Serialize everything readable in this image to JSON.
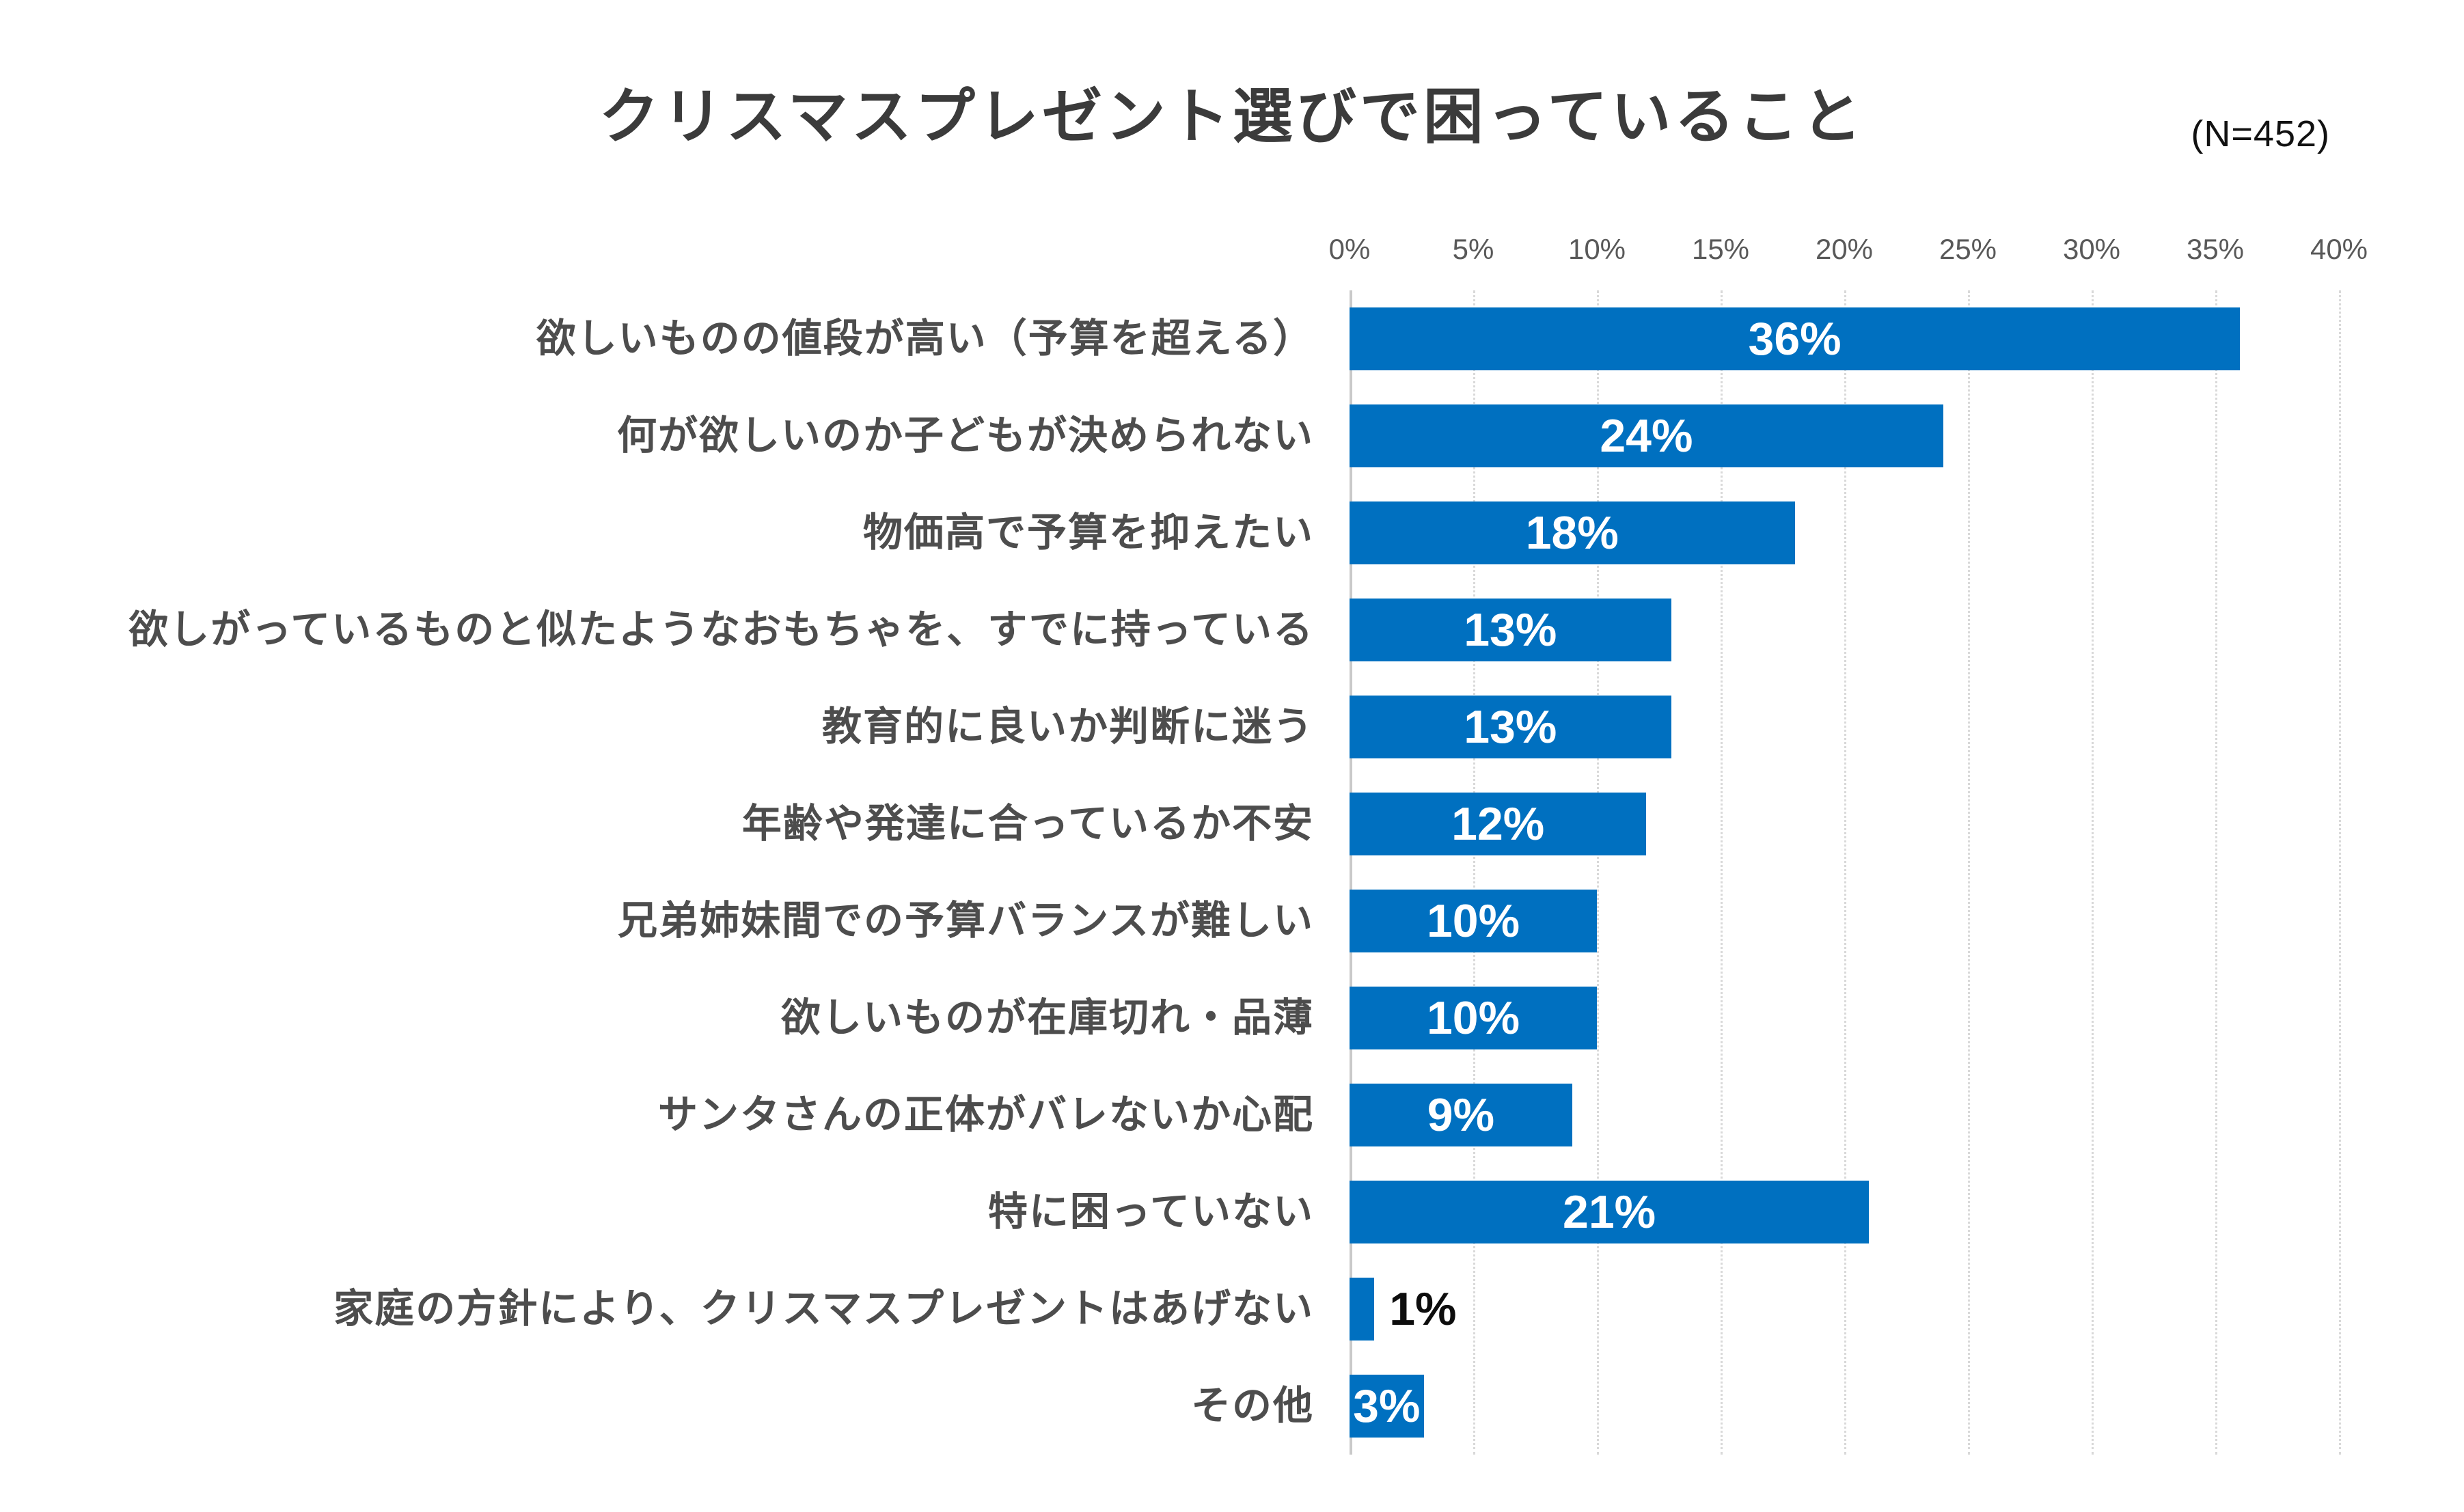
{
  "header": {
    "title": "クリスマスプレゼント選びで困っていること",
    "sample_label": "(N=452)"
  },
  "chart_data": {
    "type": "bar",
    "orientation": "horizontal",
    "title": "クリスマスプレゼント選びで困っていること",
    "sample_size": 452,
    "categories": [
      "欲しいものの値段が高い（予算を超える）",
      "何が欲しいのか子どもが決められない",
      "物価高で予算を抑えたい",
      "欲しがっているものと似たようなおもちゃを、すでに持っている",
      "教育的に良いか判断に迷う",
      "年齢や発達に合っているか不安",
      "兄弟姉妹間での予算バランスが難しい",
      "欲しいものが在庫切れ・品薄",
      "サンタさんの正体がバレないか心配",
      "特に困っていない",
      "家庭の方針により、クリスマスプレゼントはあげない",
      "その他"
    ],
    "values": [
      36,
      24,
      18,
      13,
      13,
      12,
      10,
      10,
      9,
      21,
      1,
      3
    ],
    "value_labels": [
      "36%",
      "24%",
      "18%",
      "13%",
      "13%",
      "12%",
      "10%",
      "10%",
      "9%",
      "21%",
      "1%",
      "3%"
    ],
    "outside_label_indices": [
      10
    ],
    "axis": {
      "position": "top",
      "unit": "%",
      "min": 0,
      "max": 40,
      "step": 5,
      "ticks": [
        "0%",
        "5%",
        "10%",
        "15%",
        "20%",
        "25%",
        "30%",
        "35%",
        "40%"
      ]
    },
    "grid": "vertical-dotted",
    "legend": "none",
    "colors": {
      "bar": "#0070C0",
      "value_label_inside": "#FFFFFF",
      "value_label_outside": "#000000",
      "gridline": "#D9D9D9",
      "axis_line": "#C9C9C9",
      "category_text": "#4D4D4D",
      "tick_text": "#595959",
      "title_text": "#3B3B3B"
    }
  }
}
